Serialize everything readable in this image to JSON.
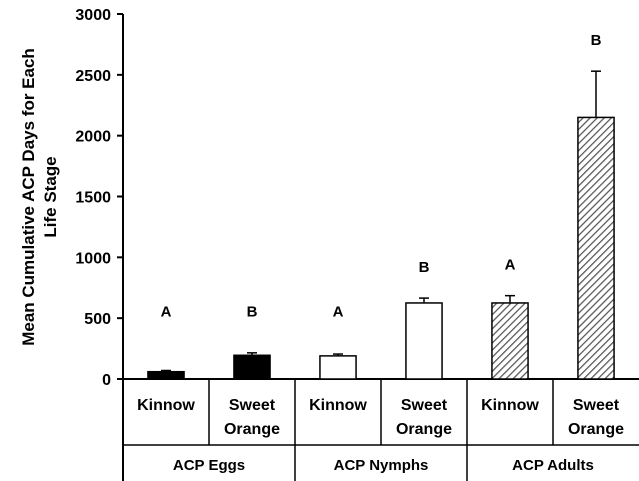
{
  "chart_data": {
    "type": "bar",
    "ylabel": "Mean Cumulative ACP Days for Each Life Stage",
    "ylim": [
      0,
      3000
    ],
    "yticks": [
      0,
      500,
      1000,
      1500,
      2000,
      2500,
      3000
    ],
    "groups": [
      {
        "name": "ACP Eggs",
        "fill": "#000000",
        "hatch": false,
        "categories": [
          "Kinnow",
          "Sweet Orange"
        ],
        "values": [
          60,
          195
        ],
        "errors": [
          10,
          20
        ],
        "letters": [
          "A",
          "B"
        ]
      },
      {
        "name": "ACP Nymphs",
        "fill": "#ffffff",
        "hatch": false,
        "categories": [
          "Kinnow",
          "Sweet Orange"
        ],
        "values": [
          190,
          625
        ],
        "errors": [
          15,
          40
        ],
        "letters": [
          "A",
          "B"
        ]
      },
      {
        "name": "ACP Adults",
        "fill": "#ffffff",
        "hatch": true,
        "categories": [
          "Kinnow",
          "Sweet Orange"
        ],
        "values": [
          625,
          2150
        ],
        "errors": [
          60,
          380
        ],
        "letters": [
          "A",
          "B"
        ]
      }
    ]
  }
}
